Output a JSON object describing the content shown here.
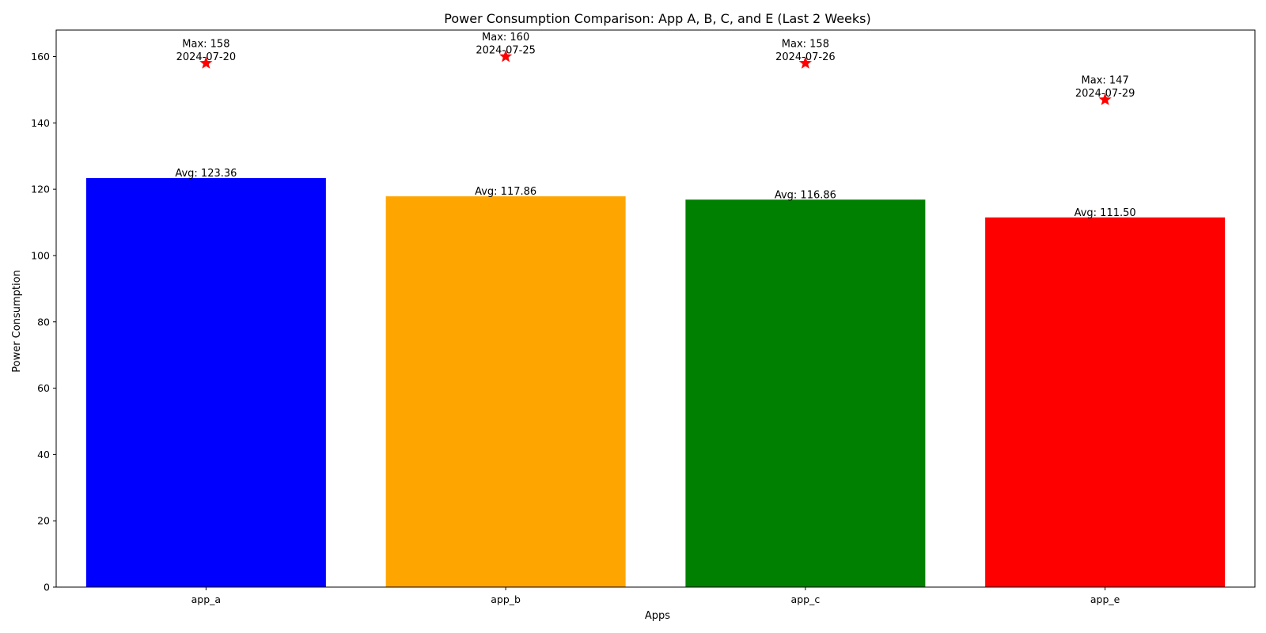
{
  "chart_data": {
    "type": "bar",
    "title": "Power Consumption Comparison: App A, B, C, and E (Last 2 Weeks)",
    "xlabel": "Apps",
    "ylabel": "Power Consumption",
    "categories": [
      "app_a",
      "app_b",
      "app_c",
      "app_e"
    ],
    "series": [
      {
        "values": [
          123.36,
          117.86,
          116.86,
          111.5
        ],
        "colors": [
          "#0000ff",
          "#ffa500",
          "#008000",
          "#ff0000"
        ]
      }
    ],
    "bar_labels": [
      "Avg: 123.36",
      "Avg: 117.86",
      "Avg: 116.86",
      "Avg: 111.50"
    ],
    "max_markers": [
      {
        "value": 158,
        "label_lines": [
          "Max: 158",
          "2024-07-20"
        ]
      },
      {
        "value": 160,
        "label_lines": [
          "Max: 160",
          "2024-07-25"
        ]
      },
      {
        "value": 158,
        "label_lines": [
          "Max: 158",
          "2024-07-26"
        ]
      },
      {
        "value": 147,
        "label_lines": [
          "Max: 147",
          "2024-07-29"
        ]
      }
    ],
    "marker_color": "#ff0000",
    "marker_shape": "star",
    "ylim": [
      0,
      168
    ],
    "yticks": [
      0,
      20,
      40,
      60,
      80,
      100,
      120,
      140,
      160
    ],
    "grid": false,
    "legend": "none"
  }
}
